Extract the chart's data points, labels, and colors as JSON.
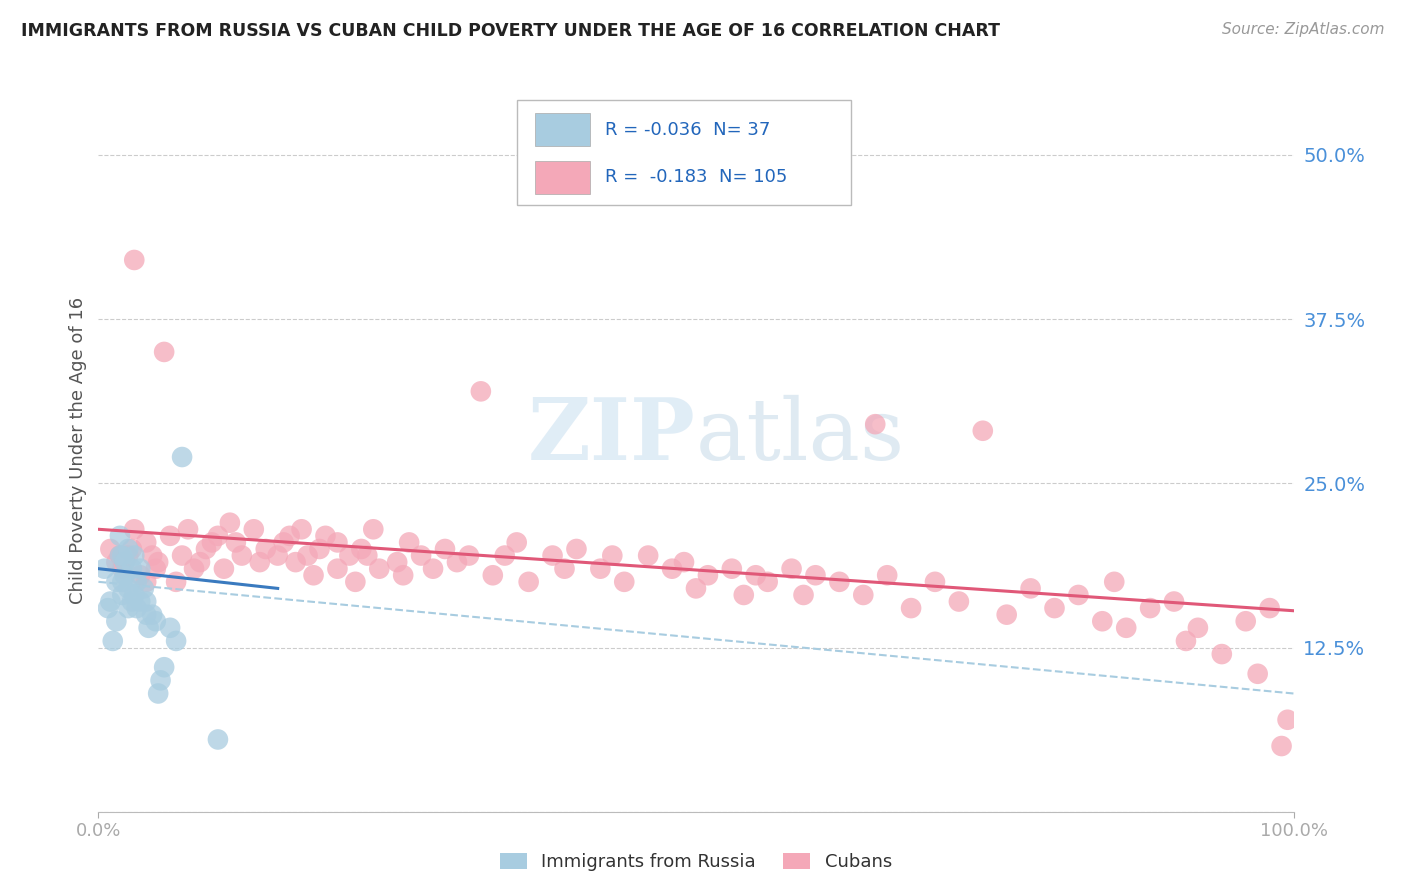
{
  "title": "IMMIGRANTS FROM RUSSIA VS CUBAN CHILD POVERTY UNDER THE AGE OF 16 CORRELATION CHART",
  "source": "Source: ZipAtlas.com",
  "ylabel": "Child Poverty Under the Age of 16",
  "legend_blue_R": "-0.036",
  "legend_blue_N": "37",
  "legend_pink_R": "-0.183",
  "legend_pink_N": "105",
  "legend_blue_label": "Immigrants from Russia",
  "legend_pink_label": "Cubans",
  "blue_color": "#a8cce0",
  "pink_color": "#f4a8b8",
  "blue_line_color": "#3a7abf",
  "pink_line_color": "#e05878",
  "dashed_line_color": "#a8cce0",
  "background_color": "#ffffff",
  "grid_color": "#cccccc",
  "xlim": [
    0.0,
    1.0
  ],
  "ylim": [
    0.0,
    0.55
  ],
  "yticks": [
    0.0,
    0.125,
    0.25,
    0.375,
    0.5
  ],
  "ytick_labels": [
    "",
    "12.5%",
    "25.0%",
    "37.5%",
    "50.0%"
  ],
  "watermark_zip": "ZIP",
  "watermark_atlas": "atlas",
  "figsize": [
    14.06,
    8.92
  ],
  "dpi": 100,
  "blue_x": [
    0.005,
    0.008,
    0.01,
    0.012,
    0.015,
    0.015,
    0.018,
    0.018,
    0.02,
    0.02,
    0.02,
    0.022,
    0.022,
    0.025,
    0.025,
    0.025,
    0.028,
    0.028,
    0.03,
    0.03,
    0.032,
    0.032,
    0.035,
    0.035,
    0.038,
    0.04,
    0.04,
    0.042,
    0.045,
    0.048,
    0.05,
    0.052,
    0.055,
    0.06,
    0.065,
    0.07,
    0.1
  ],
  "blue_y": [
    0.185,
    0.155,
    0.16,
    0.13,
    0.145,
    0.175,
    0.195,
    0.21,
    0.165,
    0.175,
    0.195,
    0.18,
    0.19,
    0.155,
    0.17,
    0.2,
    0.16,
    0.185,
    0.165,
    0.195,
    0.155,
    0.175,
    0.16,
    0.185,
    0.17,
    0.15,
    0.16,
    0.14,
    0.15,
    0.145,
    0.09,
    0.1,
    0.11,
    0.14,
    0.13,
    0.27,
    0.055
  ],
  "pink_x": [
    0.01,
    0.015,
    0.018,
    0.02,
    0.022,
    0.025,
    0.028,
    0.03,
    0.03,
    0.035,
    0.04,
    0.04,
    0.045,
    0.048,
    0.05,
    0.055,
    0.06,
    0.065,
    0.07,
    0.075,
    0.08,
    0.085,
    0.09,
    0.095,
    0.1,
    0.105,
    0.11,
    0.115,
    0.12,
    0.13,
    0.135,
    0.14,
    0.15,
    0.155,
    0.16,
    0.165,
    0.17,
    0.175,
    0.18,
    0.185,
    0.19,
    0.2,
    0.2,
    0.21,
    0.215,
    0.22,
    0.225,
    0.23,
    0.235,
    0.25,
    0.255,
    0.26,
    0.27,
    0.28,
    0.29,
    0.3,
    0.31,
    0.32,
    0.33,
    0.34,
    0.35,
    0.36,
    0.38,
    0.39,
    0.4,
    0.42,
    0.43,
    0.44,
    0.46,
    0.48,
    0.49,
    0.5,
    0.51,
    0.53,
    0.54,
    0.55,
    0.56,
    0.58,
    0.59,
    0.6,
    0.62,
    0.64,
    0.65,
    0.66,
    0.68,
    0.7,
    0.72,
    0.74,
    0.76,
    0.78,
    0.8,
    0.82,
    0.84,
    0.85,
    0.86,
    0.88,
    0.9,
    0.91,
    0.92,
    0.94,
    0.96,
    0.97,
    0.98,
    0.99,
    0.995
  ],
  "pink_y": [
    0.2,
    0.19,
    0.195,
    0.185,
    0.19,
    0.195,
    0.2,
    0.215,
    0.42,
    0.18,
    0.175,
    0.205,
    0.195,
    0.185,
    0.19,
    0.35,
    0.21,
    0.175,
    0.195,
    0.215,
    0.185,
    0.19,
    0.2,
    0.205,
    0.21,
    0.185,
    0.22,
    0.205,
    0.195,
    0.215,
    0.19,
    0.2,
    0.195,
    0.205,
    0.21,
    0.19,
    0.215,
    0.195,
    0.18,
    0.2,
    0.21,
    0.205,
    0.185,
    0.195,
    0.175,
    0.2,
    0.195,
    0.215,
    0.185,
    0.19,
    0.18,
    0.205,
    0.195,
    0.185,
    0.2,
    0.19,
    0.195,
    0.32,
    0.18,
    0.195,
    0.205,
    0.175,
    0.195,
    0.185,
    0.2,
    0.185,
    0.195,
    0.175,
    0.195,
    0.185,
    0.19,
    0.17,
    0.18,
    0.185,
    0.165,
    0.18,
    0.175,
    0.185,
    0.165,
    0.18,
    0.175,
    0.165,
    0.295,
    0.18,
    0.155,
    0.175,
    0.16,
    0.29,
    0.15,
    0.17,
    0.155,
    0.165,
    0.145,
    0.175,
    0.14,
    0.155,
    0.16,
    0.13,
    0.14,
    0.12,
    0.145,
    0.105,
    0.155,
    0.05,
    0.07
  ]
}
